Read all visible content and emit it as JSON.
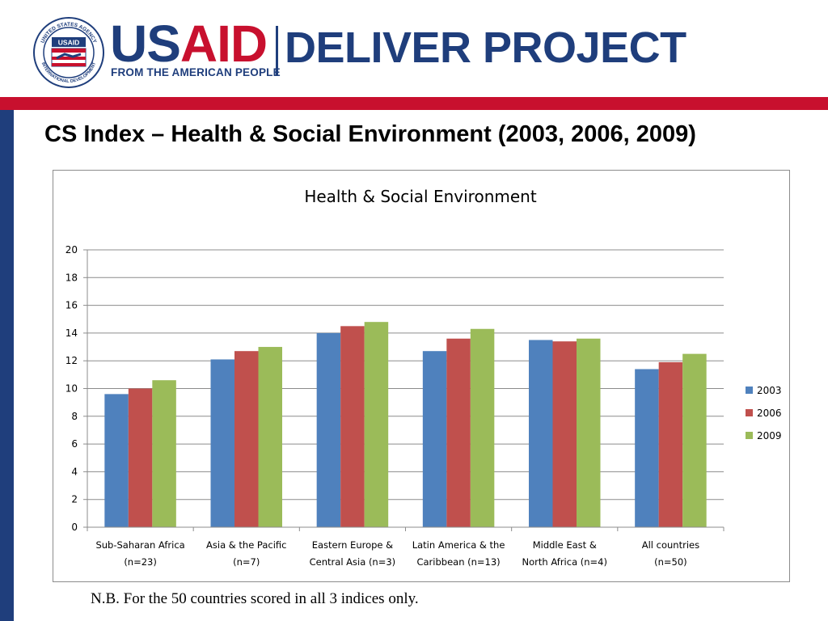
{
  "header": {
    "seal_text_top": "UNITED STATES AGENCY",
    "seal_text_bottom": "INTERNATIONAL DEVELOPMENT",
    "seal_center": "USAID",
    "brand_us": "US",
    "brand_aid": "AID",
    "brand_project": "DELIVER PROJECT",
    "tagline": "FROM THE AMERICAN PEOPLE"
  },
  "slide_title": "CS Index – Health & Social Environment (2003, 2006, 2009)",
  "footnote": "N.B. For the 50 countries scored in all 3 indices only.",
  "chart_data": {
    "type": "bar",
    "title": "Health & Social Environment",
    "xlabel": "",
    "ylabel": "",
    "ylim": [
      0,
      20
    ],
    "yticks": [
      0,
      2,
      4,
      6,
      8,
      10,
      12,
      14,
      16,
      18,
      20
    ],
    "grid": true,
    "legend_position": "right",
    "categories": [
      [
        "Sub-Saharan Africa",
        "(n=23)"
      ],
      [
        "Asia & the Pacific",
        "(n=7)"
      ],
      [
        "Eastern Europe &",
        "Central Asia (n=3)"
      ],
      [
        "Latin America & the",
        "Caribbean (n=13)"
      ],
      [
        "Middle East &",
        "North Africa (n=4)"
      ],
      [
        "All countries",
        "(n=50)"
      ]
    ],
    "series": [
      {
        "name": "2003",
        "color": "#4f81bd",
        "values": [
          9.6,
          12.1,
          14.0,
          12.7,
          13.5,
          11.4
        ]
      },
      {
        "name": "2006",
        "color": "#c0504d",
        "values": [
          10.0,
          12.7,
          14.5,
          13.6,
          13.4,
          11.9
        ]
      },
      {
        "name": "2009",
        "color": "#9bbb59",
        "values": [
          10.6,
          13.0,
          14.8,
          14.3,
          13.6,
          12.5
        ]
      }
    ]
  }
}
